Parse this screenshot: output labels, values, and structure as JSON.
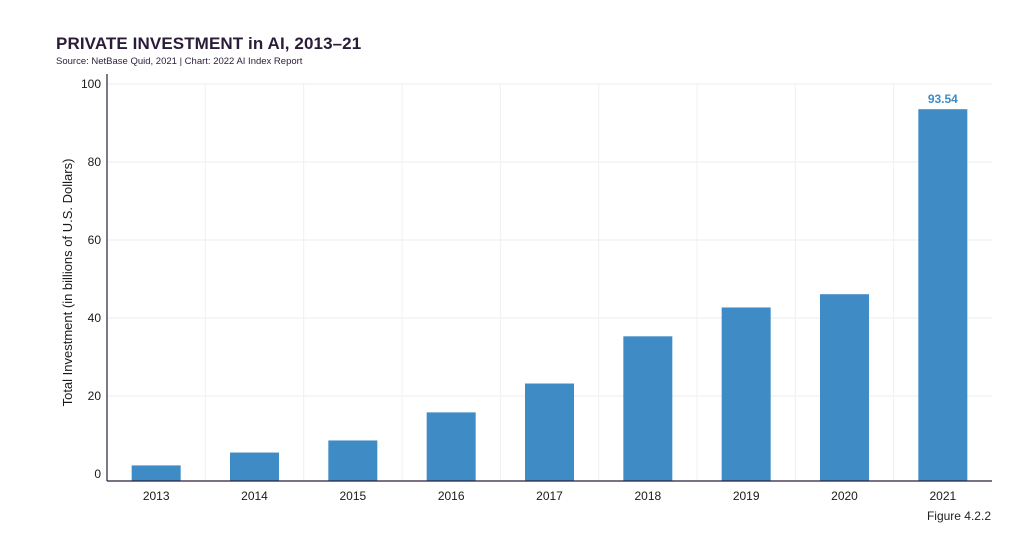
{
  "header": {
    "title": "PRIVATE INVESTMENT in AI, 2013–21",
    "subtitle": "Source: NetBase Quid, 2021 | Chart: 2022 AI Index Report"
  },
  "footer": {
    "figure_label": "Figure 4.2.2"
  },
  "chart_data": {
    "type": "bar",
    "categories": [
      "2013",
      "2014",
      "2015",
      "2016",
      "2017",
      "2018",
      "2019",
      "2020",
      "2021"
    ],
    "values": [
      2.2,
      5.5,
      8.6,
      15.8,
      23.2,
      35.3,
      42.7,
      46.1,
      93.54
    ],
    "ylabel": "Total Investment (in billions of U.S. Dollars)",
    "xlabel": "",
    "ylim": [
      0,
      100
    ],
    "yticks": [
      0,
      20,
      40,
      60,
      80,
      100
    ],
    "data_labels": [
      {
        "category": "2021",
        "text": "93.54"
      }
    ],
    "bar_color": "#3e8bc6",
    "grid": true
  }
}
